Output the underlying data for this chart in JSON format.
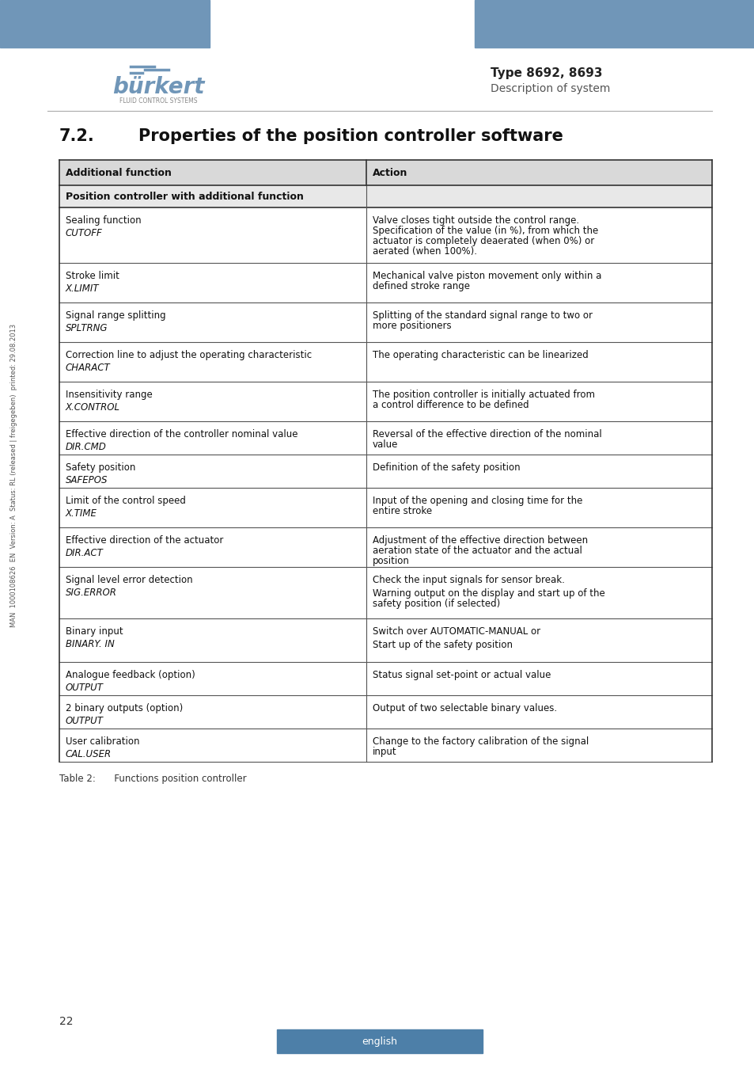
{
  "page_bg": "#ffffff",
  "header_bar_color": "#7096b8",
  "header_type_text": "Type 8692, 8693",
  "header_desc_text": "Description of system",
  "section_title": "7.2.  Properties of the position controller software",
  "table_header": [
    "Additional function",
    "Action"
  ],
  "table_header_bg": "#d9d9d9",
  "subheader_row": "Position controller with additional function",
  "subheader_bg": "#e8e8e8",
  "rows": [
    {
      "col1_main": "Sealing function",
      "col1_sub": "CUTOFF",
      "col2": "Valve closes tight outside the control range. Specification of the value (in %), from which the actuator is completely deaerated (when 0%) or aerated (when 100%)."
    },
    {
      "col1_main": "Stroke limit",
      "col1_sub": "X.LIMIT",
      "col2": "Mechanical valve piston movement only within a defined stroke range"
    },
    {
      "col1_main": "Signal range splitting",
      "col1_sub": "SPLTRNG",
      "col2": "Splitting of the standard signal range to two or more positioners"
    },
    {
      "col1_main": "Correction line to adjust the operating characteristic",
      "col1_sub": "CHARACT",
      "col2": "The operating characteristic can be linearized"
    },
    {
      "col1_main": "Insensitivity range",
      "col1_sub": "X.CONTROL",
      "col2": "The position controller is initially actuated from a control difference to be defined"
    },
    {
      "col1_main": "Effective direction of the controller nominal value",
      "col1_sub": "DIR.CMD",
      "col2": "Reversal of the effective direction of the nominal value"
    },
    {
      "col1_main": "Safety position",
      "col1_sub": "SAFEPOS",
      "col2": "Definition of the safety position"
    },
    {
      "col1_main": "Limit of the control speed",
      "col1_sub": "X.TIME",
      "col2": "Input of the opening and closing time for the entire stroke"
    },
    {
      "col1_main": "Effective direction of the actuator",
      "col1_sub": "DIR.ACT",
      "col2": "Adjustment of the effective direction between aeration state of the actuator and the actual position"
    },
    {
      "col1_main": "Signal level error detection",
      "col1_sub": "SIG.ERROR",
      "col2": "Check the input signals for sensor break.\nWarning output on the display and start up of the safety position (if selected)"
    },
    {
      "col1_main": "Binary input",
      "col1_sub": "BINARY. IN",
      "col2": "Switch over AUTOMATIC-MANUAL or\nStart up of the safety position"
    },
    {
      "col1_main": "Analogue feedback (option)",
      "col1_sub": "OUTPUT",
      "col2": "Status signal set-point or actual value"
    },
    {
      "col1_main": "2 binary outputs (option)",
      "col1_sub": "OUTPUT",
      "col2": "Output of two selectable binary values."
    },
    {
      "col1_main": "User calibration",
      "col1_sub": "CAL.USER",
      "col2": "Change to the factory calibration of the signal input"
    }
  ],
  "table_caption": "Table 2:  Functions position controller",
  "footer_text": "english",
  "footer_bg": "#4d7fa8",
  "page_number": "22",
  "side_text": "MAN  1000108626  EN  Version: A  Status: RL (released | freigegeben)  printed: 29.08.2013"
}
